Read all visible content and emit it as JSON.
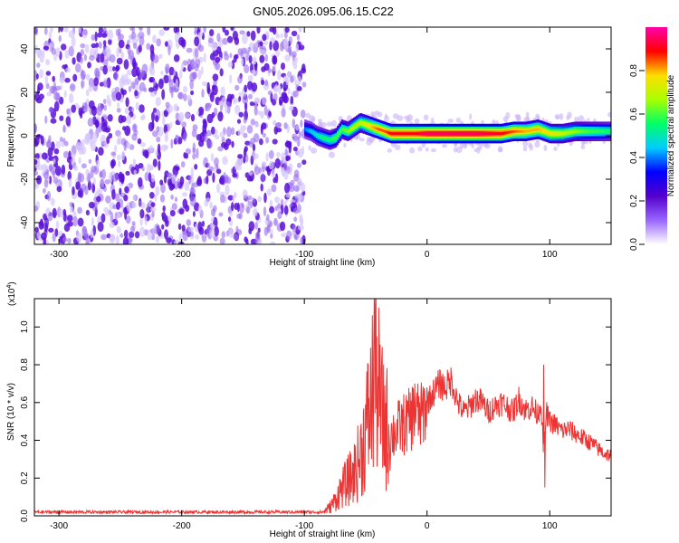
{
  "figure": {
    "title": "GN05.2026.095.06.15.C22"
  },
  "chart_data": [
    {
      "type": "heatmap",
      "title": "GN05.2026.095.06.15.C22",
      "xlabel": "Height of straight line (km)",
      "ylabel": "Frequency (Hz)",
      "xlim": [
        -320,
        150
      ],
      "ylim": [
        -50,
        50
      ],
      "x_ticks": [
        -300,
        -200,
        -100,
        0,
        100
      ],
      "x_tick_labels": [
        "-300",
        "-200",
        "-100",
        "0",
        "100"
      ],
      "y_ticks": [
        -40,
        -20,
        0,
        20,
        40
      ],
      "y_tick_labels": [
        "-40",
        "-20",
        "0",
        "20",
        "40"
      ],
      "grid": false,
      "colorbar": {
        "label": "Normalized spectral amplitude",
        "range": [
          0,
          1
        ],
        "ticks": [
          0.0,
          0.2,
          0.4,
          0.6,
          0.8
        ],
        "tick_labels": [
          "0.0",
          "0.2",
          "0.4",
          "0.6",
          "0.8"
        ],
        "colormap": [
          "#ffffff",
          "#9966ff",
          "#5500cc",
          "#0000ff",
          "#00ccff",
          "#00ff66",
          "#aaff00",
          "#ffdd00",
          "#ff0000",
          "#ff00aa"
        ]
      },
      "noise_region": {
        "x_range": [
          -320,
          -100
        ],
        "y_range": [
          -50,
          50
        ],
        "level": 0.15
      },
      "signal_ridge": {
        "x": [
          -100,
          -95,
          -90,
          -85,
          -80,
          -75,
          -70,
          -65,
          -60,
          -55,
          -50,
          -45,
          -40,
          -35,
          -30,
          -20,
          -10,
          0,
          20,
          40,
          60,
          70,
          80,
          90,
          100,
          110,
          120,
          130,
          150
        ],
        "frequency_hz": [
          3,
          2,
          0,
          -1,
          -2,
          -1,
          3,
          2,
          4,
          6,
          5,
          4,
          3,
          2,
          1,
          1,
          1,
          1,
          1,
          1,
          1,
          2,
          2,
          3,
          1,
          1,
          2,
          2,
          2
        ],
        "amplitude": [
          0.4,
          0.45,
          0.5,
          0.55,
          0.55,
          0.6,
          0.6,
          0.65,
          0.7,
          0.7,
          0.75,
          0.8,
          0.85,
          0.85,
          0.9,
          0.9,
          0.9,
          0.95,
          0.95,
          0.95,
          0.9,
          0.85,
          0.8,
          0.8,
          0.75,
          0.7,
          0.65,
          0.6,
          0.55
        ]
      }
    },
    {
      "type": "line",
      "xlabel": "Height of straight line (km)",
      "ylabel": "SNR (10 * v/v)",
      "y_scale_label": "(x10",
      "y_scale_exponent": "4",
      "y_scale_close": ")",
      "xlim": [
        -320,
        150
      ],
      "ylim": [
        0,
        1.15
      ],
      "x_ticks": [
        -300,
        -200,
        -100,
        0,
        100
      ],
      "x_tick_labels": [
        "-300",
        "-200",
        "-100",
        "0",
        "100"
      ],
      "y_ticks": [
        0.0,
        0.2,
        0.4,
        0.6,
        0.8,
        1.0
      ],
      "y_tick_labels": [
        "0.0",
        "0.2",
        "0.4",
        "0.6",
        "0.8",
        "1.0"
      ],
      "grid": false,
      "color": "#ee3333",
      "series": [
        {
          "x": [
            -320,
            -300,
            -250,
            -200,
            -150,
            -100,
            -85,
            -80,
            -75,
            -70,
            -65,
            -60,
            -55,
            -50,
            -45,
            -42,
            -40,
            -38,
            -35,
            -30,
            -25,
            -20,
            -15,
            -10,
            -5,
            0,
            5,
            10,
            15,
            20,
            25,
            30,
            35,
            40,
            45,
            50,
            55,
            60,
            65,
            70,
            75,
            80,
            85,
            90,
            93,
            95,
            97,
            100,
            105,
            110,
            115,
            120,
            125,
            130,
            135,
            140,
            145,
            150
          ],
          "values": [
            0.02,
            0.02,
            0.02,
            0.02,
            0.02,
            0.02,
            0.02,
            0.04,
            0.08,
            0.14,
            0.18,
            0.22,
            0.3,
            0.45,
            0.6,
            0.9,
            0.7,
            0.55,
            0.5,
            0.42,
            0.45,
            0.48,
            0.5,
            0.55,
            0.52,
            0.6,
            0.65,
            0.7,
            0.68,
            0.72,
            0.6,
            0.55,
            0.58,
            0.62,
            0.6,
            0.55,
            0.58,
            0.6,
            0.58,
            0.55,
            0.62,
            0.56,
            0.58,
            0.54,
            0.6,
            0.3,
            0.55,
            0.5,
            0.48,
            0.45,
            0.46,
            0.44,
            0.42,
            0.4,
            0.38,
            0.35,
            0.33,
            0.32
          ]
        }
      ]
    }
  ]
}
